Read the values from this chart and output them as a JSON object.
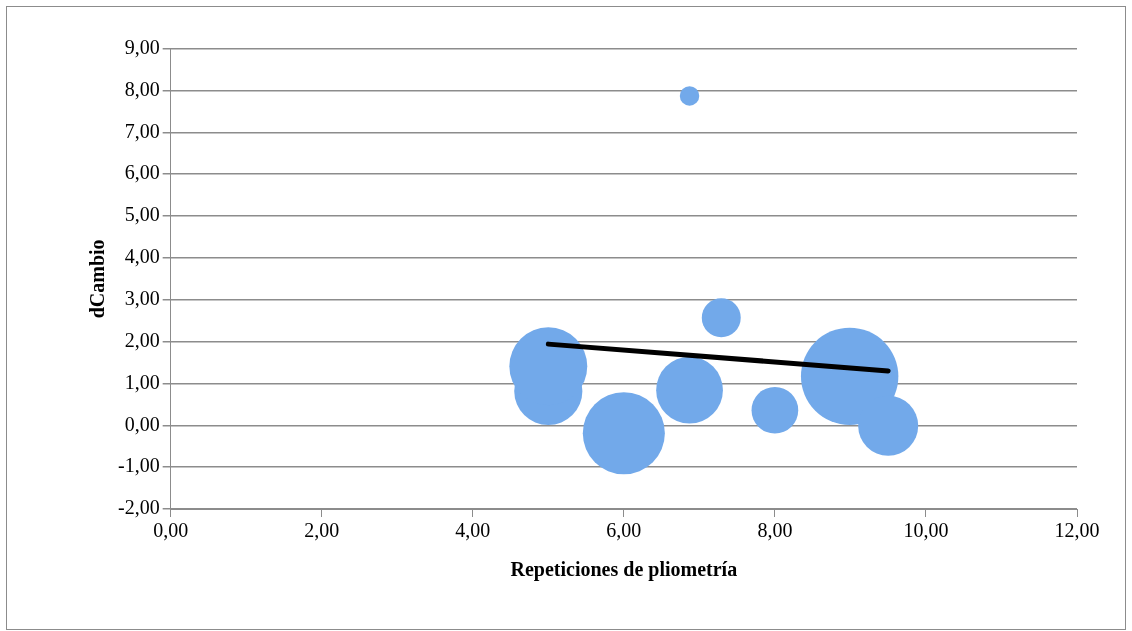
{
  "chart_data": {
    "type": "bubble",
    "xlabel": "Repeticiones de pliometría",
    "ylabel": "dCambio",
    "xlim": [
      0,
      12
    ],
    "ylim": [
      -2,
      9
    ],
    "xticks": [
      {
        "value": 0,
        "label": "0,00"
      },
      {
        "value": 2,
        "label": "2,00"
      },
      {
        "value": 4,
        "label": "4,00"
      },
      {
        "value": 6,
        "label": "6,00"
      },
      {
        "value": 8,
        "label": "8,00"
      },
      {
        "value": 10,
        "label": "10,00"
      },
      {
        "value": 12,
        "label": "12,00"
      }
    ],
    "yticks": [
      {
        "value": -2,
        "label": "-2,00"
      },
      {
        "value": -1,
        "label": "-1,00"
      },
      {
        "value": 0,
        "label": "0,00"
      },
      {
        "value": 1,
        "label": "1,00"
      },
      {
        "value": 2,
        "label": "2,00"
      },
      {
        "value": 3,
        "label": "3,00"
      },
      {
        "value": 4,
        "label": "4,00"
      },
      {
        "value": 5,
        "label": "5,00"
      },
      {
        "value": 6,
        "label": "6,00"
      },
      {
        "value": 7,
        "label": "7,00"
      },
      {
        "value": 8,
        "label": "8,00"
      },
      {
        "value": 9,
        "label": "9,00"
      }
    ],
    "grid": "y",
    "series": [
      {
        "color": "#72a9ea",
        "x": [
          5.0,
          5.0,
          6.0,
          6.87,
          6.87,
          7.29,
          8.0,
          8.99,
          9.5
        ],
        "values": [
          0.82,
          1.41,
          -0.19,
          0.84,
          7.87,
          2.57,
          0.36,
          1.17,
          -0.01
        ],
        "sizes": [
          0.49,
          0.64,
          0.71,
          0.47,
          0.04,
          0.16,
          0.23,
          1,
          0.38
        ]
      },
      {
        "type": "line",
        "color": "#000000",
        "x": [
          5.0,
          9.5
        ],
        "values": [
          1.94,
          1.3
        ]
      }
    ]
  }
}
